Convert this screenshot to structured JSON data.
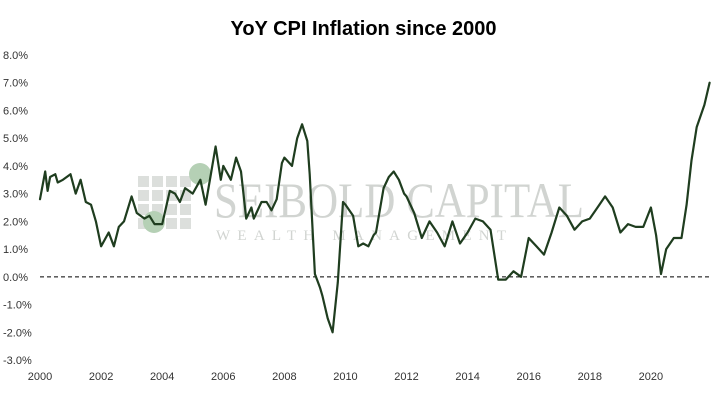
{
  "chart_data": {
    "type": "line",
    "title": "YoY CPI Inflation since 2000",
    "xlabel": "",
    "ylabel": "",
    "xlim": [
      2000,
      2022
    ],
    "ylim": [
      -3.0,
      8.0
    ],
    "y_ticks": [
      "-3.0%",
      "-2.0%",
      "-1.0%",
      "0.0%",
      "1.0%",
      "2.0%",
      "3.0%",
      "4.0%",
      "5.0%",
      "6.0%",
      "7.0%",
      "8.0%"
    ],
    "x_ticks": [
      "2000",
      "2002",
      "2004",
      "2006",
      "2008",
      "2010",
      "2012",
      "2014",
      "2016",
      "2018",
      "2020"
    ],
    "grid": false,
    "reference_line": {
      "y": 0,
      "style": "dashed"
    },
    "series": [
      {
        "color": "#1f3d1f",
        "x": [
          2000.0,
          2000.17,
          2000.25,
          2000.33,
          2000.5,
          2000.58,
          2000.75,
          2001.0,
          2001.17,
          2001.33,
          2001.5,
          2001.67,
          2001.83,
          2002.0,
          2002.25,
          2002.42,
          2002.58,
          2002.75,
          2003.0,
          2003.17,
          2003.42,
          2003.58,
          2003.75,
          2004.0,
          2004.25,
          2004.42,
          2004.58,
          2004.75,
          2005.0,
          2005.25,
          2005.42,
          2005.58,
          2005.75,
          2005.92,
          2006.0,
          2006.25,
          2006.42,
          2006.58,
          2006.75,
          2006.92,
          2007.0,
          2007.25,
          2007.42,
          2007.58,
          2007.75,
          2007.92,
          2008.0,
          2008.25,
          2008.42,
          2008.58,
          2008.75,
          2008.83,
          2009.0,
          2009.17,
          2009.25,
          2009.42,
          2009.58,
          2009.75,
          2009.92,
          2010.0,
          2010.25,
          2010.42,
          2010.58,
          2010.75,
          2010.92,
          2011.0,
          2011.25,
          2011.42,
          2011.58,
          2011.75,
          2011.92,
          2012.0,
          2012.25,
          2012.5,
          2012.75,
          2013.0,
          2013.25,
          2013.5,
          2013.75,
          2014.0,
          2014.25,
          2014.5,
          2014.75,
          2015.0,
          2015.25,
          2015.5,
          2015.75,
          2016.0,
          2016.25,
          2016.5,
          2016.75,
          2017.0,
          2017.25,
          2017.5,
          2017.75,
          2018.0,
          2018.25,
          2018.5,
          2018.75,
          2019.0,
          2019.25,
          2019.5,
          2019.75,
          2020.0,
          2020.17,
          2020.33,
          2020.5,
          2020.75,
          2021.0,
          2021.17,
          2021.33,
          2021.5,
          2021.75,
          2021.92
        ],
        "values": [
          2.8,
          3.8,
          3.1,
          3.6,
          3.7,
          3.4,
          3.5,
          3.7,
          3.0,
          3.5,
          2.7,
          2.6,
          2.0,
          1.1,
          1.6,
          1.1,
          1.8,
          2.0,
          2.9,
          2.3,
          2.1,
          2.2,
          1.9,
          1.9,
          3.1,
          3.0,
          2.7,
          3.2,
          3.0,
          3.5,
          2.6,
          3.6,
          4.7,
          3.5,
          4.0,
          3.5,
          4.3,
          3.8,
          2.1,
          2.5,
          2.1,
          2.7,
          2.7,
          2.4,
          2.8,
          4.1,
          4.3,
          4.0,
          5.0,
          5.5,
          4.9,
          3.7,
          0.1,
          -0.4,
          -0.7,
          -1.5,
          -2.0,
          -0.2,
          2.7,
          2.6,
          2.2,
          1.1,
          1.2,
          1.1,
          1.5,
          1.6,
          3.2,
          3.6,
          3.8,
          3.5,
          3.0,
          2.9,
          2.3,
          1.4,
          2.0,
          1.6,
          1.1,
          2.0,
          1.2,
          1.6,
          2.1,
          2.0,
          1.7,
          -0.1,
          -0.1,
          0.2,
          0.0,
          1.4,
          1.1,
          0.8,
          1.6,
          2.5,
          2.2,
          1.7,
          2.0,
          2.1,
          2.5,
          2.9,
          2.5,
          1.6,
          1.9,
          1.8,
          1.8,
          2.5,
          1.5,
          0.1,
          1.0,
          1.4,
          1.4,
          2.6,
          4.2,
          5.4,
          6.2,
          7.0
        ]
      }
    ],
    "watermark": {
      "line1": "SEIBOLD CAPITAL",
      "line2": "WEALTH MANAGEMENT"
    }
  }
}
